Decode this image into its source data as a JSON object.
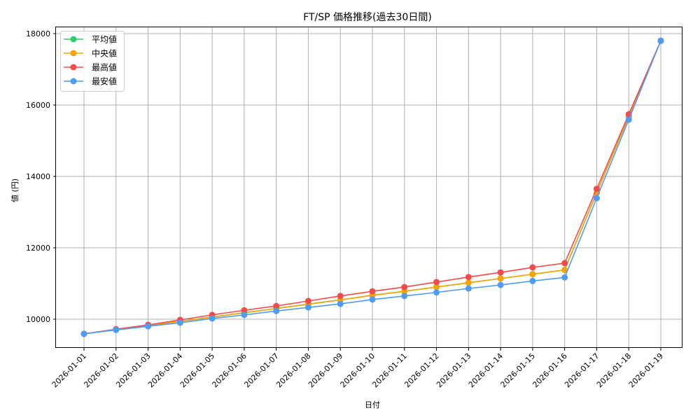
{
  "chart_data": {
    "type": "line",
    "title": "FT/SP 価格推移(過去30日間)",
    "xlabel": "日付",
    "ylabel": "値 (円)",
    "ylim": [
      9200,
      18200
    ],
    "yticks": [
      10000,
      12000,
      14000,
      16000,
      18000
    ],
    "grid": true,
    "legend_position": "upper left",
    "categories": [
      "2026-01-01",
      "2026-01-02",
      "2026-01-03",
      "2026-01-04",
      "2026-01-05",
      "2026-01-06",
      "2026-01-07",
      "2026-01-08",
      "2026-01-09",
      "2026-01-10",
      "2026-01-11",
      "2026-01-12",
      "2026-01-13",
      "2026-01-14",
      "2026-01-15",
      "2026-01-16",
      "2026-01-17",
      "2026-01-18",
      "2026-01-19"
    ],
    "series": [
      {
        "name": "平均値",
        "color": "#2ecc71",
        "values": [
          9590,
          9710,
          9820,
          9940,
          10060,
          10180,
          10300,
          10420,
          10540,
          10670,
          10780,
          10900,
          11020,
          11140,
          11260,
          11380,
          13540,
          15670,
          17800
        ]
      },
      {
        "name": "中央値",
        "color": "#f5a500",
        "values": [
          9590,
          9710,
          9820,
          9940,
          10060,
          10180,
          10300,
          10420,
          10540,
          10670,
          10780,
          10900,
          11020,
          11140,
          11260,
          11380,
          13540,
          15670,
          17800
        ]
      },
      {
        "name": "最高値",
        "color": "#f54a4a",
        "values": [
          9590,
          9720,
          9840,
          9980,
          10120,
          10250,
          10370,
          10510,
          10650,
          10780,
          10900,
          11040,
          11180,
          11310,
          11450,
          11570,
          13650,
          15740,
          17800
        ]
      },
      {
        "name": "最安値",
        "color": "#4f9cf5",
        "values": [
          9590,
          9700,
          9800,
          9900,
          10020,
          10120,
          10230,
          10330,
          10430,
          10550,
          10650,
          10750,
          10860,
          10960,
          11070,
          11170,
          13390,
          15590,
          17800
        ]
      }
    ]
  }
}
